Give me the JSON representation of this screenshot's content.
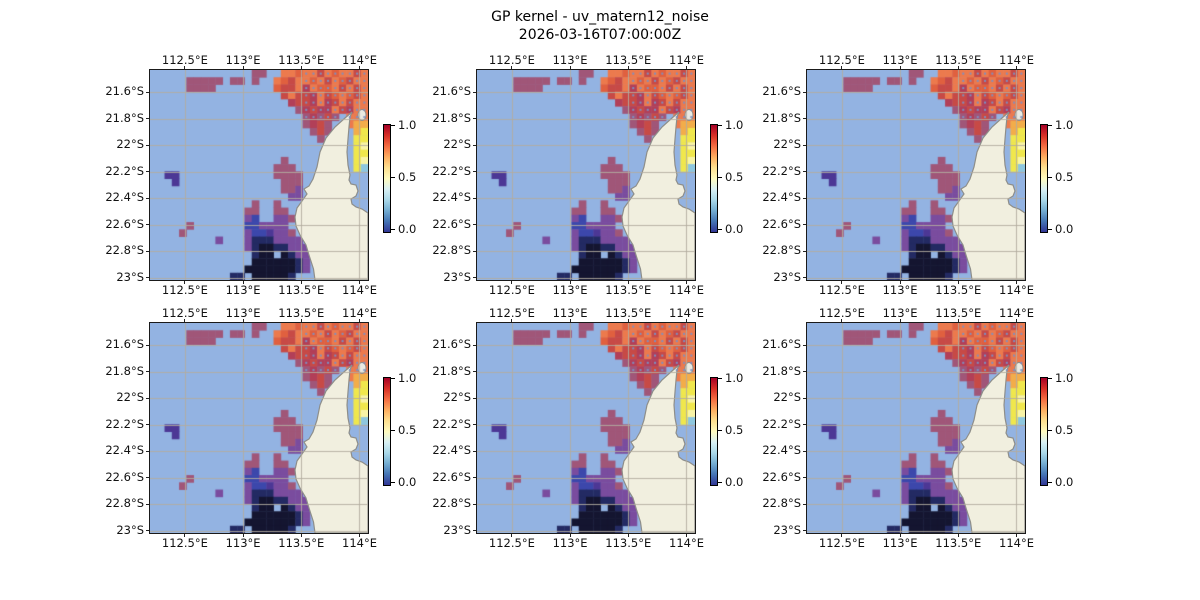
{
  "title": "GP kernel - uv_matern12_noise",
  "subtitle": "2026-03-16T07:00:00Z",
  "chart_data": {
    "type": "heatmap",
    "grid_layout": "2 rows x 3 columns of identical geographic heatmap panels",
    "n_panels": 6,
    "x_tick_labels": [
      "112.5°E",
      "113°E",
      "113.5°E",
      "114°E"
    ],
    "y_tick_labels": [
      "21.6°S",
      "21.8°S",
      "22°S",
      "22.2°S",
      "22.4°S",
      "22.6°S",
      "22.8°S",
      "23°S"
    ],
    "x_ticks_deg_e": [
      112.5,
      113.0,
      113.5,
      114.0
    ],
    "y_ticks_deg_s": [
      21.6,
      21.8,
      22.0,
      22.2,
      22.4,
      22.6,
      22.8,
      23.0
    ],
    "axes_labels_position": "x ticks on top and bottom of each panel, y ticks on left",
    "colorbar": {
      "tick_labels": [
        "1.0",
        "0.5",
        "0.0"
      ],
      "vmin": 0.0,
      "vmax": 1.0,
      "orientation": "vertical",
      "colormap_stops_top_to_bottom": [
        "#a50026",
        "#d73027",
        "#f46d43",
        "#fdae61",
        "#fee090",
        "#fffbbf",
        "#d9f0f3",
        "#abd9e9",
        "#74add1",
        "#4575b4",
        "#313695"
      ]
    },
    "map": {
      "ocean_color": "#93b3e2",
      "land_color": "#f1efdf",
      "coast_color": "#8e8e8a",
      "gridline_color": "#b2ac9e",
      "observation_dot_color": "#7d8fc2",
      "cell_palette": {
        "o": "#ec7a4d",
        "O": "#e0603f",
        "R": "#c74a46",
        "M": "#b23f58",
        "m": "#a05678",
        "p": "#7a4c9e",
        "P": "#4c3795",
        "B": "#3c47ab",
        "N": "#232a63",
        "K": "#141530",
        "Y": "#f0e74c",
        "y": "#f2ad4a",
        "l": "#f8f3a6",
        "c": "#8ec7de"
      },
      "cell_rows": [
        "..............mm..ooOooRoOooRo",
        ".....mmmmm.mm.m..oORooOoRoORoo",
        ".....mmmm........ORRoMoOOoRoRo",
        "..................RoRRMoROoORo",
        "...................MRRMoMRoRoo",
        "....................mMRMMoRMoo",
        ".....................mMmRm.ooo",
        ".....................mMRm..oyy",
        "......................mRm...yY",
        ".......................m....YY",
        "............................Yl",
        "............................YY",
        "..................m.........Yl",
        ".................mmm........Yc",
        "..PP.............mmmm.........",
        "...P..............mmm.........",
        "..................mmp.........",
        "...................pp.........",
        "..............m..m............",
        ".............mm..mm...........",
        ".............pB..ppm..........",
        ".....m.......BBpppp...........",
        "....m........pBBPppm..........",
        ".........p...pNNNpppp.........",
        ".............pNKKNNppp........",
        "..............NKK.KNpp........",
        "..............KKKKKKNp........",
        ".............KKKKKKKNp........",
        "...........NN.KKKKKN.........."
      ]
    }
  }
}
